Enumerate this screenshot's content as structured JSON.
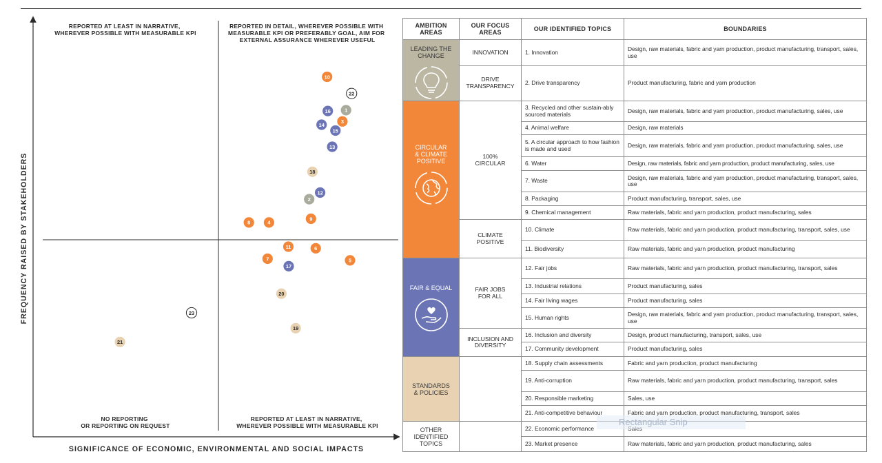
{
  "matrix": {
    "quadrant_labels": {
      "top_left": [
        "REPORTED AT LEAST IN NARRATIVE,",
        "WHEREVER POSSIBLE WITH MEASURABLE KPI"
      ],
      "top_right": [
        "REPORTED IN DETAIL, WHEREVER POSSIBLE WITH",
        "MEASURABLE KPI OR PREFERABLY GOAL, AIM FOR",
        "EXTERNAL ASSURANCE WHEREVER USEFUL"
      ],
      "bottom_left": [
        "NO REPORTING",
        "OR REPORTING ON REQUEST"
      ],
      "bottom_right": [
        "REPORTED AT LEAST IN NARRATIVE,",
        "WHEREVER POSSIBLE WITH MEASURABLE KPI"
      ]
    },
    "x_axis_label": "SIGNIFICANCE OF ECONOMIC, ENVIRONMENTAL AND SOCIAL IMPACTS",
    "y_axis_label": "FREQUENCY RAISED BY STAKEHOLDERS"
  },
  "chart_data": {
    "type": "scatter",
    "title": "",
    "xlabel": "SIGNIFICANCE OF ECONOMIC, ENVIRONMENTAL AND SOCIAL IMPACTS",
    "ylabel": "FREQUENCY RAISED BY STAKEHOLDERS",
    "xlim": [
      0,
      100
    ],
    "ylim": [
      0,
      100
    ],
    "category_colors": {
      "leading": "#a9ab9c",
      "circular": "#f2873a",
      "fair": "#6b75b6",
      "standards": "#e8d2b2",
      "other": "#ffffff"
    },
    "points": [
      {
        "label": "10",
        "x": 80.5,
        "y": 86.5,
        "category": "circular"
      },
      {
        "label": "22",
        "x": 87.2,
        "y": 82.5,
        "category": "other"
      },
      {
        "label": "16",
        "x": 80.7,
        "y": 78.3,
        "category": "fair"
      },
      {
        "label": "1",
        "x": 85.7,
        "y": 78.5,
        "category": "leading"
      },
      {
        "label": "3",
        "x": 84.7,
        "y": 75.8,
        "category": "circular"
      },
      {
        "label": "14",
        "x": 79.0,
        "y": 75.0,
        "category": "fair"
      },
      {
        "label": "15",
        "x": 82.8,
        "y": 73.6,
        "category": "fair"
      },
      {
        "label": "13",
        "x": 81.9,
        "y": 69.7,
        "category": "fair"
      },
      {
        "label": "18",
        "x": 76.5,
        "y": 63.7,
        "category": "standards"
      },
      {
        "label": "12",
        "x": 78.6,
        "y": 58.7,
        "category": "fair"
      },
      {
        "label": "2",
        "x": 75.6,
        "y": 57.1,
        "category": "leading"
      },
      {
        "label": "9",
        "x": 76.1,
        "y": 52.4,
        "category": "circular"
      },
      {
        "label": "8",
        "x": 59.1,
        "y": 51.5,
        "category": "circular"
      },
      {
        "label": "4",
        "x": 64.6,
        "y": 51.5,
        "category": "circular"
      },
      {
        "label": "11",
        "x": 69.9,
        "y": 45.7,
        "category": "circular"
      },
      {
        "label": "6",
        "x": 77.4,
        "y": 45.3,
        "category": "circular"
      },
      {
        "label": "7",
        "x": 64.2,
        "y": 42.8,
        "category": "circular"
      },
      {
        "label": "5",
        "x": 86.8,
        "y": 42.4,
        "category": "circular"
      },
      {
        "label": "17",
        "x": 70.0,
        "y": 41.0,
        "category": "fair"
      },
      {
        "label": "20",
        "x": 68.0,
        "y": 34.4,
        "category": "standards"
      },
      {
        "label": "23",
        "x": 43.4,
        "y": 29.8,
        "category": "other"
      },
      {
        "label": "19",
        "x": 71.9,
        "y": 26.1,
        "category": "standards"
      },
      {
        "label": "21",
        "x": 23.8,
        "y": 22.8,
        "category": "standards"
      }
    ]
  },
  "table": {
    "headers": {
      "ambition": [
        "AMBITION",
        "AREAS"
      ],
      "focus": [
        "OUR FOCUS",
        "AREAS"
      ],
      "topics": "OUR IDENTIFIED TOPICS",
      "boundaries": "BOUNDARIES"
    },
    "ambitions": {
      "leading": [
        "LEADING THE",
        "CHANGE"
      ],
      "circular": [
        "CIRCULAR",
        "& CLIMATE",
        "POSITIVE"
      ],
      "fair": [
        "FAIR & EQUAL"
      ],
      "standards": [
        "STANDARDS",
        "& POLICIES"
      ],
      "other": [
        "OTHER",
        "IDENTIFIED",
        "TOPICS"
      ]
    },
    "focus": {
      "innovation": [
        "INNOVATION"
      ],
      "drive": [
        "DRIVE",
        "TRANSPARENCY"
      ],
      "circular100": [
        "100%",
        "CIRCULAR"
      ],
      "climate": [
        "CLIMATE",
        "POSITIVE"
      ],
      "fairjobs": [
        "FAIR JOBS",
        "FOR ALL"
      ],
      "inclusion": [
        "INCLUSION AND",
        "DIVERSITY"
      ]
    },
    "rows": [
      {
        "topic": "1. Innovation",
        "boundary": "Design, raw materials, fabric and yarn production, product manufacturing, transport, sales, use"
      },
      {
        "topic": "2. Drive transparency",
        "boundary": "Product manufacturing, fabric and yarn production"
      },
      {
        "topic": "3. Recycled and other sustain-ably sourced materials",
        "boundary": "Design, raw materials, fabric and yarn production, product manufacturing, sales, use"
      },
      {
        "topic": "4. Animal welfare",
        "boundary": "Design, raw materials"
      },
      {
        "topic": "5. A circular approach to how fashion is made and used",
        "boundary": "Design, raw materials, fabric and yarn production, product manufacturing, sales, use"
      },
      {
        "topic": "6. Water",
        "boundary": "Design, raw materials, fabric and yarn production, product manufacturing, sales, use"
      },
      {
        "topic": "7. Waste",
        "boundary": "Design, raw materials, fabric and yarn production, product manufacturing, transport, sales, use"
      },
      {
        "topic": "8. Packaging",
        "boundary": "Product manufacturing, transport, sales, use"
      },
      {
        "topic": "9. Chemical management",
        "boundary": "Raw materials, fabric and yarn production, product manufacturing, sales"
      },
      {
        "topic": "10. Climate",
        "boundary": "Raw materials, fabric and yarn production, product manufacturing, transport, sales, use"
      },
      {
        "topic": "11. Biodiversity",
        "boundary": "Raw materials, fabric and yarn production, product manufacturing"
      },
      {
        "topic": "12. Fair jobs",
        "boundary": "Raw materials, fabric and yarn production, product manufacturing, transport, sales"
      },
      {
        "topic": "13. Industrial relations",
        "boundary": "Product manufacturing, sales"
      },
      {
        "topic": "14. Fair living wages",
        "boundary": "Product manufacturing, sales"
      },
      {
        "topic": "15. Human rights",
        "boundary": "Design, raw materials, fabric and yarn production, product manufacturing, transport, sales, use"
      },
      {
        "topic": "16. Inclusion and diversity",
        "boundary": "Design, product manufacturing, transport, sales, use"
      },
      {
        "topic": "17. Community development",
        "boundary": "Product manufacturing, sales"
      },
      {
        "topic": "18. Supply chain assessments",
        "boundary": "Fabric and yarn production, product manufacturing"
      },
      {
        "topic": "19. Anti-corruption",
        "boundary": "Raw materials, fabric and yarn production, product manufacturing, transport, sales"
      },
      {
        "topic": "20. Responsible marketing",
        "boundary": "Sales, use"
      },
      {
        "topic": "21. Anti-competitive behaviour",
        "boundary": "Fabric and yarn production, product manufacturing, transport, sales"
      },
      {
        "topic": "22. Economic performance",
        "boundary": "Sales"
      },
      {
        "topic": "23. Market presence",
        "boundary": "Raw materials, fabric and yarn production, product manufacturing, sales"
      }
    ]
  },
  "overlay": {
    "label": "Rectangular Snip"
  }
}
